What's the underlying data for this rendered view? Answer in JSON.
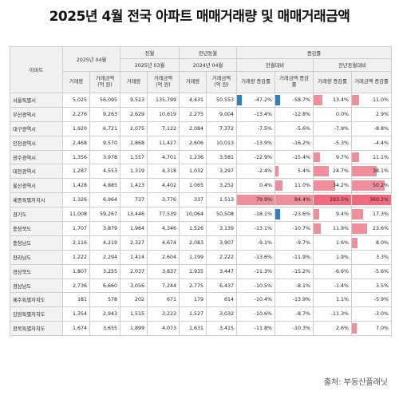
{
  "title": "2025년 4월 전국 아파트 매매거래량 및 매매거래금액",
  "source": "출처: 부동산플래닛",
  "colors": {
    "negative_bar": "#2f7fc1",
    "positive_bar": "#ef8e9c",
    "positive_bar_strong": "#f26a80"
  },
  "header": {
    "region": "아파트",
    "current": "2025년 04월",
    "prev_month": "전월",
    "prev_year": "전년동월",
    "change": "증감률",
    "prev_month_period": "2025년 03월",
    "prev_year_period": "2024년 04월",
    "mom": "전월대비",
    "yoy": "전년동월대비",
    "volume": "거래량",
    "amount": "거래금액 (억 원)",
    "vol_rate": "거래량 증감률",
    "amt_rate": "거래금액 증감률"
  },
  "rows": [
    {
      "region": "서울특별시",
      "v": "5,025",
      "a": "56,095",
      "pv": "9,523",
      "pa": "135,799",
      "yv": "4,431",
      "ya": "50,553",
      "mv": "-47.2%",
      "ma": "-58.7%",
      "yvr": "13.4%",
      "yar": "11.0%"
    },
    {
      "region": "부산광역시",
      "v": "2,276",
      "a": "9,263",
      "pv": "2,629",
      "pa": "10,619",
      "yv": "2,275",
      "ya": "9,004",
      "mv": "-13.4%",
      "ma": "-12.8%",
      "yvr": "0.0%",
      "yar": "2.9%"
    },
    {
      "region": "대구광역시",
      "v": "1,920",
      "a": "6,721",
      "pv": "2,075",
      "pa": "7,122",
      "yv": "2,084",
      "ya": "7,372",
      "mv": "-7.5%",
      "ma": "-5.6%",
      "yvr": "-7.9%",
      "yar": "-8.8%"
    },
    {
      "region": "인천광역시",
      "v": "2,468",
      "a": "9,570",
      "pv": "2,868",
      "pa": "11,427",
      "yv": "2,606",
      "ya": "10,013",
      "mv": "-13.9%",
      "ma": "-16.2%",
      "yvr": "-5.3%",
      "yar": "-4.4%"
    },
    {
      "region": "광주광역시",
      "v": "1,356",
      "a": "3,978",
      "pv": "1,557",
      "pa": "4,701",
      "yv": "1,236",
      "ya": "3,581",
      "mv": "-12.9%",
      "ma": "-15.4%",
      "yvr": "9.7%",
      "yar": "11.1%"
    },
    {
      "region": "대전광역시",
      "v": "1,287",
      "a": "4,553",
      "pv": "1,319",
      "pa": "4,318",
      "yv": "1,032",
      "ya": "3,297",
      "mv": "-2.4%",
      "ma": "5.4%",
      "yvr": "24.7%",
      "yar": "38.1%"
    },
    {
      "region": "울산광역시",
      "v": "1,428",
      "a": "4,885",
      "pv": "1,423",
      "pa": "4,402",
      "yv": "1,065",
      "ya": "3,252",
      "mv": "0.4%",
      "ma": "11.0%",
      "yvr": "34.2%",
      "yar": "50.2%"
    },
    {
      "region": "세종특별자치시",
      "v": "1,326",
      "a": "6,964",
      "pv": "737",
      "pa": "3,776",
      "yv": "337",
      "ya": "1,513",
      "mv": "79.9%",
      "ma": "84.4%",
      "yvr": "293.5%",
      "yar": "360.2%"
    },
    {
      "region": "경기도",
      "v": "11,008",
      "a": "59,267",
      "pv": "13,446",
      "pa": "77,539",
      "yv": "10,064",
      "ya": "50,508",
      "mv": "-18.1%",
      "ma": "-23.6%",
      "yvr": "9.4%",
      "yar": "17.3%"
    },
    {
      "region": "충청북도",
      "v": "1,707",
      "a": "3,879",
      "pv": "1,964",
      "pa": "4,346",
      "yv": "1,526",
      "ya": "3,139",
      "mv": "-13.1%",
      "ma": "-10.7%",
      "yvr": "11.9%",
      "yar": "23.6%"
    },
    {
      "region": "충청남도",
      "v": "2,116",
      "a": "4,219",
      "pv": "2,327",
      "pa": "4,674",
      "yv": "2,083",
      "ya": "3,907",
      "mv": "-9.1%",
      "ma": "-9.7%",
      "yvr": "1.6%",
      "yar": "8.0%"
    },
    {
      "region": "전라남도",
      "v": "1,222",
      "a": "2,294",
      "pv": "1,414",
      "pa": "2,604",
      "yv": "1,199",
      "ya": "2,222",
      "mv": "-13.6%",
      "ma": "-11.9%",
      "yvr": "1.9%",
      "yar": "3.3%"
    },
    {
      "region": "경상북도",
      "v": "1,807",
      "a": "3,255",
      "pv": "2,037",
      "pa": "3,837",
      "yv": "1,935",
      "ya": "3,447",
      "mv": "-11.3%",
      "ma": "-15.2%",
      "yvr": "-6.6%",
      "yar": "-5.6%"
    },
    {
      "region": "경상남도",
      "v": "2,736",
      "a": "6,660",
      "pv": "3,056",
      "pa": "7,244",
      "yv": "2,775",
      "ya": "6,437",
      "mv": "-10.5%",
      "ma": "-8.1%",
      "yvr": "-1.4%",
      "yar": "3.5%"
    },
    {
      "region": "제주특별자치도",
      "v": "181",
      "a": "578",
      "pv": "202",
      "pa": "671",
      "yv": "179",
      "ya": "614",
      "mv": "-10.4%",
      "ma": "-13.9%",
      "yvr": "1.1%",
      "yar": "-5.9%"
    },
    {
      "region": "강원특별자치도",
      "v": "1,354",
      "a": "2,943",
      "pv": "1,515",
      "pa": "3,223",
      "yv": "1,527",
      "ya": "3,032",
      "mv": "-10.6%",
      "ma": "-8.7%",
      "yvr": "-11.3%",
      "yar": "-3.0%"
    },
    {
      "region": "전북특별자치도",
      "v": "1,674",
      "a": "3,655",
      "pv": "1,899",
      "pa": "4,073",
      "yv": "1,631",
      "ya": "3,415",
      "mv": "-11.8%",
      "ma": "-10.3%",
      "yvr": "2.6%",
      "yar": "7.0%"
    }
  ]
}
